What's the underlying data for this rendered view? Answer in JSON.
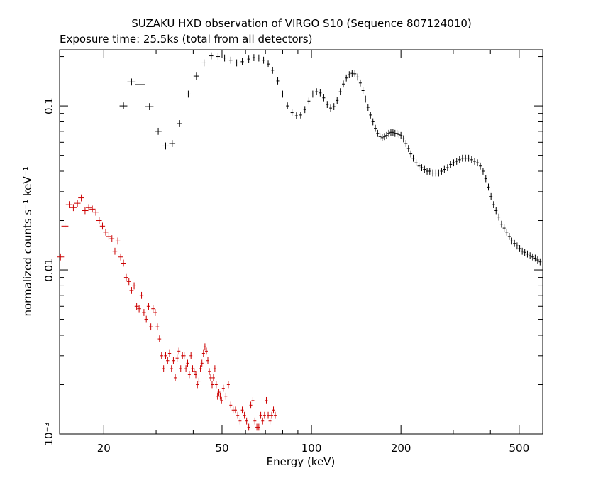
{
  "chart_data": {
    "type": "scatter",
    "title": "SUZAKU HXD observation of VIRGO S10 (Sequence 807124010)",
    "subtitle": "Exposure time: 25.5ks (total from all detectors)",
    "xlabel": "Energy (keV)",
    "ylabel": "normalized counts s⁻¹ keV⁻¹",
    "x_scale": "log",
    "y_scale": "log",
    "xlim": [
      14.2,
      600
    ],
    "ylim": [
      0.001,
      0.22
    ],
    "x_ticks": [
      {
        "value": 20,
        "label": "20"
      },
      {
        "value": 50,
        "label": "50"
      },
      {
        "value": 100,
        "label": "100"
      },
      {
        "value": 200,
        "label": "200"
      },
      {
        "value": 500,
        "label": "500"
      }
    ],
    "y_ticks": [
      {
        "value": 0.001,
        "label": "10⁻³"
      },
      {
        "value": 0.01,
        "label": "0.01"
      },
      {
        "value": 0.1,
        "label": "0.1"
      }
    ],
    "grid": false,
    "colors": {
      "bgd_series": "#000000",
      "source_series": "#cc0000"
    },
    "series": [
      {
        "color": "#000000",
        "points": [
          [
            23.3,
            0.1,
            0.7
          ],
          [
            24.8,
            0.14,
            0.8
          ],
          [
            26.5,
            0.135,
            1.0
          ],
          [
            28.5,
            0.099,
            0.9
          ],
          [
            30.5,
            0.07,
            0.8
          ],
          [
            32.3,
            0.057,
            0.8
          ],
          [
            34.0,
            0.059,
            0.8
          ],
          [
            36.0,
            0.078,
            0.7
          ],
          [
            38.5,
            0.118,
            0.8
          ],
          [
            41.0,
            0.152,
            0.9
          ],
          [
            43.5,
            0.183,
            0.8
          ],
          [
            46.0,
            0.202,
            0.7
          ],
          [
            48.5,
            0.2,
            0.7
          ],
          [
            51.0,
            0.196,
            0.7
          ],
          [
            53.5,
            0.19,
            0.7
          ],
          [
            56.0,
            0.183,
            0.7
          ],
          [
            58.5,
            0.186,
            0.7
          ],
          [
            61.5,
            0.193,
            0.6
          ],
          [
            64.0,
            0.197,
            0.6
          ],
          [
            66.5,
            0.196,
            0.6
          ],
          [
            69.0,
            0.19,
            0.6
          ],
          [
            71.5,
            0.18,
            0.6
          ],
          [
            74.0,
            0.165,
            0.5
          ],
          [
            77.0,
            0.142,
            0.5
          ],
          [
            80.0,
            0.118,
            0.5
          ],
          [
            83.0,
            0.1,
            0.5
          ],
          [
            86.0,
            0.091,
            0.5
          ],
          [
            89.0,
            0.087,
            0.5
          ],
          [
            92.0,
            0.088,
            0.5
          ],
          [
            95.0,
            0.095,
            0.6
          ],
          [
            98.0,
            0.107,
            0.6
          ],
          [
            101.0,
            0.118,
            0.6
          ],
          [
            104.0,
            0.122,
            0.6
          ],
          [
            107.0,
            0.12,
            0.6
          ],
          [
            110.0,
            0.112,
            0.5
          ],
          [
            113.0,
            0.102,
            0.5
          ],
          [
            116.0,
            0.097,
            0.5
          ],
          [
            119.0,
            0.099,
            0.5
          ],
          [
            122.0,
            0.108,
            0.5
          ],
          [
            125.0,
            0.122,
            0.5
          ],
          [
            128.0,
            0.136,
            0.5
          ],
          [
            131.0,
            0.148,
            0.5
          ],
          [
            134.0,
            0.155,
            0.5
          ],
          [
            137.0,
            0.158,
            0.5
          ],
          [
            140.0,
            0.157,
            0.5
          ],
          [
            143.0,
            0.15,
            0.5
          ],
          [
            146.0,
            0.138,
            0.5
          ],
          [
            149.0,
            0.124,
            0.5
          ],
          [
            152.0,
            0.11,
            0.4
          ],
          [
            155.0,
            0.098,
            0.4
          ],
          [
            158.0,
            0.088,
            0.4
          ],
          [
            161.0,
            0.08,
            0.4
          ],
          [
            164.0,
            0.073,
            0.4
          ],
          [
            167.0,
            0.068,
            0.4
          ],
          [
            170.0,
            0.065,
            0.4
          ],
          [
            173.0,
            0.064,
            0.4
          ],
          [
            176.0,
            0.065,
            0.4
          ],
          [
            179.0,
            0.066,
            0.4
          ],
          [
            182.0,
            0.068,
            0.4
          ],
          [
            185.0,
            0.069,
            0.4
          ],
          [
            188.0,
            0.069,
            0.4
          ],
          [
            191.0,
            0.068,
            0.4
          ],
          [
            194.0,
            0.068,
            0.4
          ],
          [
            197.0,
            0.067,
            0.4
          ],
          [
            200.0,
            0.066,
            0.4
          ],
          [
            204.0,
            0.063,
            0.4
          ],
          [
            208.0,
            0.059,
            0.4
          ],
          [
            212.0,
            0.055,
            0.4
          ],
          [
            216.0,
            0.051,
            0.4
          ],
          [
            220.0,
            0.048,
            0.4
          ],
          [
            225.0,
            0.045,
            0.4
          ],
          [
            230.0,
            0.043,
            0.4
          ],
          [
            235.0,
            0.042,
            0.4
          ],
          [
            240.0,
            0.041,
            0.4
          ],
          [
            245.0,
            0.04,
            0.4
          ],
          [
            250.0,
            0.04,
            0.4
          ],
          [
            256.0,
            0.039,
            0.4
          ],
          [
            262.0,
            0.039,
            0.4
          ],
          [
            268.0,
            0.039,
            0.4
          ],
          [
            274.0,
            0.04,
            0.4
          ],
          [
            280.0,
            0.041,
            0.4
          ],
          [
            287.0,
            0.042,
            0.4
          ],
          [
            294.0,
            0.044,
            0.4
          ],
          [
            301.0,
            0.045,
            0.4
          ],
          [
            308.0,
            0.046,
            0.4
          ],
          [
            315.0,
            0.047,
            0.4
          ],
          [
            322.0,
            0.048,
            0.4
          ],
          [
            330.0,
            0.048,
            0.4
          ],
          [
            338.0,
            0.048,
            0.4
          ],
          [
            346.0,
            0.047,
            0.4
          ],
          [
            354.0,
            0.046,
            0.4
          ],
          [
            362.0,
            0.045,
            0.4
          ],
          [
            370.0,
            0.043,
            0.4
          ],
          [
            378.0,
            0.04,
            0.4
          ],
          [
            386.0,
            0.036,
            0.4
          ],
          [
            394.0,
            0.032,
            0.4
          ],
          [
            402.0,
            0.028,
            0.4
          ],
          [
            410.0,
            0.025,
            0.4
          ],
          [
            418.0,
            0.023,
            0.4
          ],
          [
            427.0,
            0.021,
            0.4
          ],
          [
            436.0,
            0.019,
            0.4
          ],
          [
            445.0,
            0.018,
            0.4
          ],
          [
            454.0,
            0.017,
            0.4
          ],
          [
            463.0,
            0.016,
            0.4
          ],
          [
            472.0,
            0.015,
            0.4
          ],
          [
            482.0,
            0.0145,
            0.4
          ],
          [
            492.0,
            0.014,
            0.4
          ],
          [
            502.0,
            0.0135,
            0.4
          ],
          [
            512.0,
            0.013,
            0.4
          ],
          [
            522.0,
            0.0128,
            0.4
          ],
          [
            533.0,
            0.0125,
            0.4
          ],
          [
            544.0,
            0.0122,
            0.4
          ],
          [
            555.0,
            0.012,
            0.4
          ],
          [
            566.0,
            0.0118,
            0.4
          ],
          [
            577.0,
            0.0115,
            0.4
          ],
          [
            588.0,
            0.0112,
            0.4
          ]
        ]
      },
      {
        "color": "#cc0000",
        "points": [
          [
            14.3,
            0.012,
            0.4
          ],
          [
            14.8,
            0.0185,
            0.4
          ],
          [
            15.3,
            0.025,
            0.4
          ],
          [
            15.8,
            0.024,
            0.4
          ],
          [
            16.3,
            0.0255,
            0.4
          ],
          [
            16.8,
            0.0275,
            0.4
          ],
          [
            17.3,
            0.023,
            0.4
          ],
          [
            17.8,
            0.024,
            0.4
          ],
          [
            18.3,
            0.0235,
            0.4
          ],
          [
            18.8,
            0.0225,
            0.4
          ],
          [
            19.3,
            0.02,
            0.4
          ],
          [
            19.8,
            0.0185,
            0.4
          ],
          [
            20.3,
            0.017,
            0.4
          ],
          [
            20.8,
            0.016,
            0.4
          ],
          [
            21.3,
            0.0155,
            0.4
          ],
          [
            21.8,
            0.013,
            0.4
          ],
          [
            22.3,
            0.015,
            0.4
          ],
          [
            22.8,
            0.012,
            0.4
          ],
          [
            23.3,
            0.011,
            0.4
          ],
          [
            23.8,
            0.009,
            0.4
          ],
          [
            24.3,
            0.0085,
            0.4
          ],
          [
            24.8,
            0.0075,
            0.4
          ],
          [
            25.3,
            0.008,
            0.4
          ],
          [
            25.8,
            0.006,
            0.4
          ],
          [
            26.3,
            0.0058,
            0.4
          ],
          [
            26.8,
            0.007,
            0.4
          ],
          [
            27.3,
            0.0055,
            0.4
          ],
          [
            27.8,
            0.005,
            0.4
          ],
          [
            28.3,
            0.006,
            0.4
          ],
          [
            28.8,
            0.0045,
            0.4
          ],
          [
            29.3,
            0.0058,
            0.4
          ],
          [
            29.8,
            0.0055,
            0.4
          ],
          [
            30.3,
            0.0045,
            0.4
          ],
          [
            30.8,
            0.0038,
            0.4
          ],
          [
            31.3,
            0.003,
            0.4
          ],
          [
            31.8,
            0.0025,
            0.4
          ],
          [
            32.3,
            0.003,
            0.4
          ],
          [
            32.8,
            0.0028,
            0.4
          ],
          [
            33.3,
            0.0031,
            0.4
          ],
          [
            33.8,
            0.0025,
            0.4
          ],
          [
            34.3,
            0.0028,
            0.4
          ],
          [
            34.8,
            0.0022,
            0.4
          ],
          [
            35.3,
            0.0029,
            0.4
          ],
          [
            35.8,
            0.0032,
            0.4
          ],
          [
            36.3,
            0.0025,
            0.4
          ],
          [
            36.8,
            0.003,
            0.4
          ],
          [
            37.3,
            0.003,
            0.4
          ],
          [
            37.8,
            0.0025,
            0.4
          ],
          [
            38.3,
            0.0027,
            0.4
          ],
          [
            38.8,
            0.0023,
            0.4
          ],
          [
            39.3,
            0.003,
            0.4
          ],
          [
            39.8,
            0.0025,
            0.4
          ],
          [
            40.3,
            0.0024,
            0.4
          ],
          [
            40.8,
            0.0023,
            0.4
          ],
          [
            41.3,
            0.002,
            0.4
          ],
          [
            41.8,
            0.0021,
            0.4
          ],
          [
            42.3,
            0.0025,
            0.4
          ],
          [
            42.8,
            0.0027,
            0.4
          ],
          [
            43.3,
            0.0031,
            0.4
          ],
          [
            43.8,
            0.0034,
            0.4
          ],
          [
            44.3,
            0.0032,
            0.4
          ],
          [
            44.8,
            0.0028,
            0.4
          ],
          [
            45.3,
            0.0024,
            0.4
          ],
          [
            45.8,
            0.0022,
            0.4
          ],
          [
            46.3,
            0.002,
            0.4
          ],
          [
            46.8,
            0.0022,
            0.4
          ],
          [
            47.3,
            0.0025,
            0.4
          ],
          [
            47.8,
            0.002,
            0.4
          ],
          [
            48.3,
            0.0017,
            0.4
          ],
          [
            48.8,
            0.0018,
            0.4
          ],
          [
            49.3,
            0.0017,
            0.4
          ],
          [
            49.8,
            0.0016,
            0.4
          ],
          [
            50.5,
            0.0019,
            0.4
          ],
          [
            51.5,
            0.0017,
            0.4
          ],
          [
            52.5,
            0.002,
            0.4
          ],
          [
            53.5,
            0.0015,
            0.4
          ],
          [
            54.5,
            0.0014,
            0.4
          ],
          [
            55.5,
            0.0014,
            0.4
          ],
          [
            56.5,
            0.0013,
            0.4
          ],
          [
            57.5,
            0.0012,
            0.4
          ],
          [
            58.5,
            0.0014,
            0.4
          ],
          [
            59.5,
            0.0013,
            0.4
          ],
          [
            60.5,
            0.0012,
            0.4
          ],
          [
            61.5,
            0.0011,
            0.4
          ],
          [
            62.5,
            0.0015,
            0.4
          ],
          [
            63.5,
            0.0016,
            0.4
          ],
          [
            64.5,
            0.0012,
            0.4
          ],
          [
            65.5,
            0.0011,
            0.4
          ],
          [
            66.5,
            0.0011,
            0.4
          ],
          [
            67.5,
            0.0013,
            0.4
          ],
          [
            68.5,
            0.0012,
            0.4
          ],
          [
            69.5,
            0.0013,
            0.4
          ],
          [
            70.5,
            0.0016,
            0.4
          ],
          [
            71.5,
            0.0013,
            0.4
          ],
          [
            72.5,
            0.0012,
            0.4
          ],
          [
            73.5,
            0.0013,
            0.4
          ],
          [
            74.5,
            0.0014,
            0.4
          ],
          [
            75.5,
            0.0013,
            0.4
          ]
        ]
      }
    ]
  }
}
